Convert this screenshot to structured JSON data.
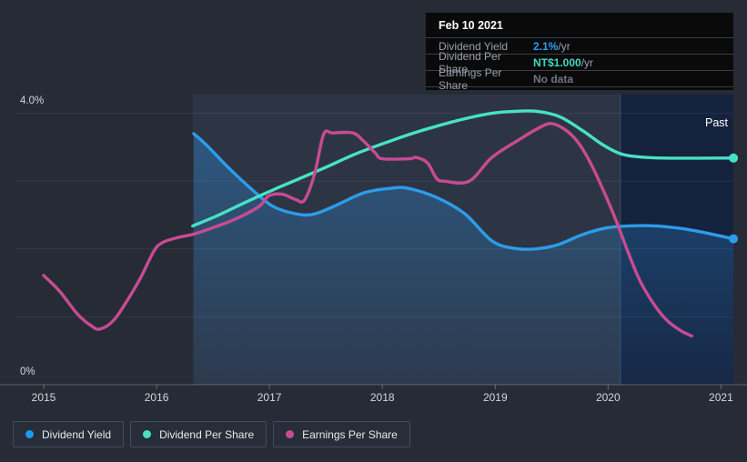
{
  "tooltip": {
    "date": "Feb 10 2021",
    "rows": [
      {
        "label": "Dividend Yield",
        "value": "2.1%",
        "suffix": " /yr",
        "value_color": "#2b9ff2"
      },
      {
        "label": "Dividend Per Share",
        "value": "NT$1.000",
        "suffix": " /yr",
        "value_color": "#40dcc2"
      },
      {
        "label": "Earnings Per Share",
        "value": "No data",
        "suffix": "",
        "value_color": "#71767d"
      }
    ]
  },
  "past_label": "Past",
  "legend": [
    {
      "label": "Dividend Yield",
      "color": "#1f9bf0"
    },
    {
      "label": "Dividend Per Share",
      "color": "#47e2c6"
    },
    {
      "label": "Earnings Per Share",
      "color": "#c84b92"
    }
  ],
  "chart_data": {
    "type": "line",
    "title": "Dividend history chart",
    "x_ticks": [
      "2015",
      "2016",
      "2017",
      "2018",
      "2019",
      "2020",
      "2021"
    ],
    "x_range": [
      2014.75,
      2021.11
    ],
    "y_axis": {
      "top_label": "4.0%",
      "bottom_label": "0%",
      "min": 0,
      "max": 4,
      "unit": "%",
      "gridline_values": [
        0,
        1,
        2,
        3,
        4
      ]
    },
    "grid": true,
    "legend_position": "bottom",
    "highlight_start": 2016.32,
    "past_start": 2020.11,
    "colors": {
      "background": "#262b36",
      "past_band": "rgba(8,28,68,0.55)",
      "highlight_band": "rgba(106,150,205,0.10)"
    },
    "series": [
      {
        "name": "Dividend Yield",
        "color": "#2d9cea",
        "area": true,
        "end_dot": true,
        "points": [
          [
            2016.33,
            3.7
          ],
          [
            2016.45,
            3.52
          ],
          [
            2016.63,
            3.21
          ],
          [
            2016.83,
            2.9
          ],
          [
            2017.03,
            2.63
          ],
          [
            2017.23,
            2.52
          ],
          [
            2017.38,
            2.51
          ],
          [
            2017.56,
            2.62
          ],
          [
            2017.84,
            2.83
          ],
          [
            2018.1,
            2.9
          ],
          [
            2018.24,
            2.89
          ],
          [
            2018.48,
            2.76
          ],
          [
            2018.73,
            2.52
          ],
          [
            2018.97,
            2.12
          ],
          [
            2019.17,
            2.01
          ],
          [
            2019.35,
            2.0
          ],
          [
            2019.55,
            2.06
          ],
          [
            2019.77,
            2.21
          ],
          [
            2019.98,
            2.31
          ],
          [
            2020.18,
            2.34
          ],
          [
            2020.42,
            2.34
          ],
          [
            2020.66,
            2.3
          ],
          [
            2020.86,
            2.24
          ],
          [
            2021.11,
            2.15
          ]
        ]
      },
      {
        "name": "Dividend Per Share",
        "color": "#47e2c6",
        "area": false,
        "end_dot": true,
        "points": [
          [
            2016.32,
            2.34
          ],
          [
            2016.55,
            2.5
          ],
          [
            2016.79,
            2.69
          ],
          [
            2017.03,
            2.87
          ],
          [
            2017.27,
            3.04
          ],
          [
            2017.52,
            3.22
          ],
          [
            2017.76,
            3.4
          ],
          [
            2018.0,
            3.55
          ],
          [
            2018.24,
            3.69
          ],
          [
            2018.48,
            3.81
          ],
          [
            2018.73,
            3.92
          ],
          [
            2018.97,
            4.0
          ],
          [
            2019.17,
            4.03
          ],
          [
            2019.37,
            4.03
          ],
          [
            2019.57,
            3.95
          ],
          [
            2019.77,
            3.75
          ],
          [
            2019.94,
            3.55
          ],
          [
            2020.1,
            3.41
          ],
          [
            2020.26,
            3.36
          ],
          [
            2020.5,
            3.34
          ],
          [
            2021.11,
            3.34
          ]
        ]
      },
      {
        "name": "Earnings Per Share",
        "color": "#c84b92",
        "area": false,
        "end_dot": false,
        "points": [
          [
            2015.0,
            1.61
          ],
          [
            2015.14,
            1.38
          ],
          [
            2015.3,
            1.04
          ],
          [
            2015.42,
            0.87
          ],
          [
            2015.5,
            0.82
          ],
          [
            2015.62,
            0.95
          ],
          [
            2015.74,
            1.24
          ],
          [
            2015.86,
            1.58
          ],
          [
            2015.98,
            1.98
          ],
          [
            2016.06,
            2.1
          ],
          [
            2016.19,
            2.17
          ],
          [
            2016.33,
            2.22
          ],
          [
            2016.51,
            2.32
          ],
          [
            2016.71,
            2.45
          ],
          [
            2016.91,
            2.63
          ],
          [
            2016.99,
            2.78
          ],
          [
            2017.11,
            2.81
          ],
          [
            2017.23,
            2.73
          ],
          [
            2017.31,
            2.72
          ],
          [
            2017.4,
            3.11
          ],
          [
            2017.48,
            3.69
          ],
          [
            2017.56,
            3.71
          ],
          [
            2017.74,
            3.71
          ],
          [
            2017.84,
            3.58
          ],
          [
            2017.94,
            3.41
          ],
          [
            2018.0,
            3.33
          ],
          [
            2018.24,
            3.33
          ],
          [
            2018.3,
            3.35
          ],
          [
            2018.4,
            3.27
          ],
          [
            2018.48,
            3.04
          ],
          [
            2018.55,
            3.0
          ],
          [
            2018.77,
            3.0
          ],
          [
            2018.97,
            3.35
          ],
          [
            2019.21,
            3.61
          ],
          [
            2019.37,
            3.77
          ],
          [
            2019.49,
            3.85
          ],
          [
            2019.61,
            3.77
          ],
          [
            2019.73,
            3.58
          ],
          [
            2019.85,
            3.25
          ],
          [
            2019.98,
            2.78
          ],
          [
            2020.08,
            2.38
          ],
          [
            2020.18,
            1.94
          ],
          [
            2020.28,
            1.54
          ],
          [
            2020.4,
            1.2
          ],
          [
            2020.52,
            0.95
          ],
          [
            2020.65,
            0.79
          ],
          [
            2020.74,
            0.72
          ]
        ]
      }
    ]
  }
}
